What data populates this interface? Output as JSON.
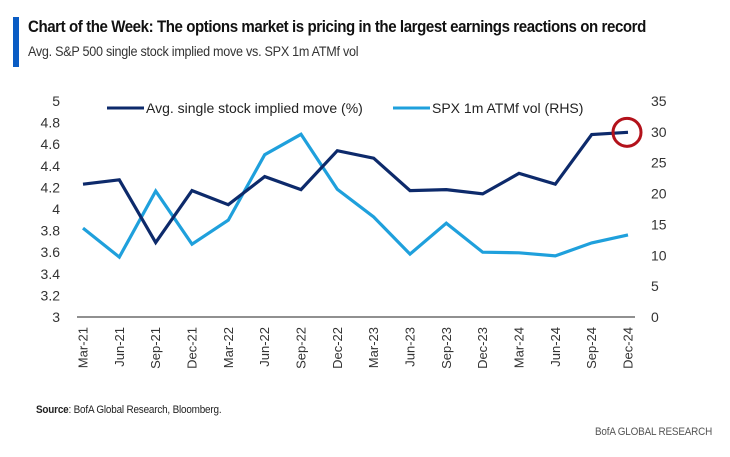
{
  "header": {
    "title": "Chart of the Week: The options market is pricing in the largest earnings reactions on record",
    "subtitle": "Avg. S&P 500 single stock implied move vs. SPX 1m ATMf vol"
  },
  "footer": {
    "source_label": "Source",
    "source_text": ": BofA Global Research, Bloomberg.",
    "brand": "BofA GLOBAL RESEARCH"
  },
  "colors": {
    "accent": "#0a5cc4",
    "series_dark": "#0d2a6b",
    "series_light": "#1fa0dc",
    "highlight_circle": "#b3121b",
    "axis": "#6b6b6b"
  },
  "chart_data": {
    "type": "line",
    "title": "Avg. S&P 500 single stock implied move vs. SPX 1m ATMf vol",
    "xlabel": "",
    "ylabel": "",
    "ylabel_right": "",
    "categories": [
      "Mar-21",
      "Jun-21",
      "Sep-21",
      "Dec-21",
      "Mar-22",
      "Jun-22",
      "Sep-22",
      "Dec-22",
      "Mar-23",
      "Jun-23",
      "Sep-23",
      "Dec-23",
      "Mar-24",
      "Jun-24",
      "Sep-24",
      "Dec-24"
    ],
    "ylim": [
      3,
      5
    ],
    "yticks": [
      "5",
      "4.8",
      "4.6",
      "4.4",
      "4.2",
      "4",
      "3.8",
      "3.6",
      "3.4",
      "3.2",
      "3"
    ],
    "ylim_right": [
      0,
      35
    ],
    "yticks_right": [
      "35",
      "30",
      "25",
      "20",
      "15",
      "10",
      "5",
      "0"
    ],
    "grid": false,
    "legend_position": "top",
    "series": [
      {
        "name": "Avg. single stock implied move (%)",
        "axis": "left",
        "values": [
          4.23,
          4.27,
          3.69,
          4.17,
          4.04,
          4.3,
          4.18,
          4.54,
          4.47,
          4.17,
          4.18,
          4.14,
          4.33,
          4.23,
          4.69,
          4.71
        ]
      },
      {
        "name": "SPX 1m ATMf vol (RHS)",
        "axis": "right",
        "values": [
          14.4,
          9.7,
          20.4,
          11.8,
          15.7,
          26.3,
          29.6,
          20.7,
          16.2,
          10.2,
          15.2,
          10.5,
          10.4,
          9.9,
          12.0,
          13.3
        ]
      }
    ],
    "annotations": [
      {
        "type": "circle",
        "series": 0,
        "category": "Dec-24",
        "note": "highlight latest value"
      }
    ]
  }
}
